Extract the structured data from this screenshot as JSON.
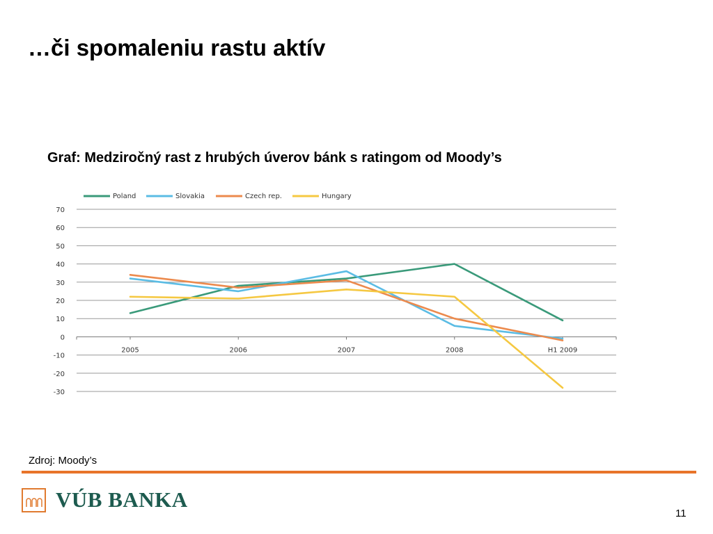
{
  "slide": {
    "title": "…či spomaleniu rastu aktív",
    "source": "Zdroj: Moody’s",
    "page_number": "11",
    "logo_text": "VÚB BANKA",
    "accent_color": "#e8742a",
    "brand_color": "#1d5b4f"
  },
  "chart_data": {
    "type": "line",
    "title": "Graf: Medziročný rast z hrubých úverov bánk s ratingom od Moody’s",
    "xlabel": "",
    "ylabel": "",
    "categories": [
      "2005",
      "2006",
      "2007",
      "2008",
      "H1 2009"
    ],
    "ylim": [
      -30,
      70
    ],
    "yticks": [
      "70",
      "60",
      "50",
      "40",
      "30",
      "20",
      "10",
      "0",
      "-10",
      "-20",
      "-30"
    ],
    "grid": true,
    "legend_position": "top",
    "series": [
      {
        "name": "Poland",
        "color": "#3a9a7a",
        "values": [
          13,
          28,
          32,
          40,
          9
        ]
      },
      {
        "name": "Slovakia",
        "color": "#5bbce4",
        "values": [
          32,
          25,
          36,
          6,
          -1
        ]
      },
      {
        "name": "Czech rep.",
        "color": "#ec8a4d",
        "values": [
          34,
          27,
          31,
          10,
          -2
        ]
      },
      {
        "name": "Hungary",
        "color": "#f5c842",
        "values": [
          22,
          21,
          26,
          22,
          -28
        ]
      }
    ]
  }
}
